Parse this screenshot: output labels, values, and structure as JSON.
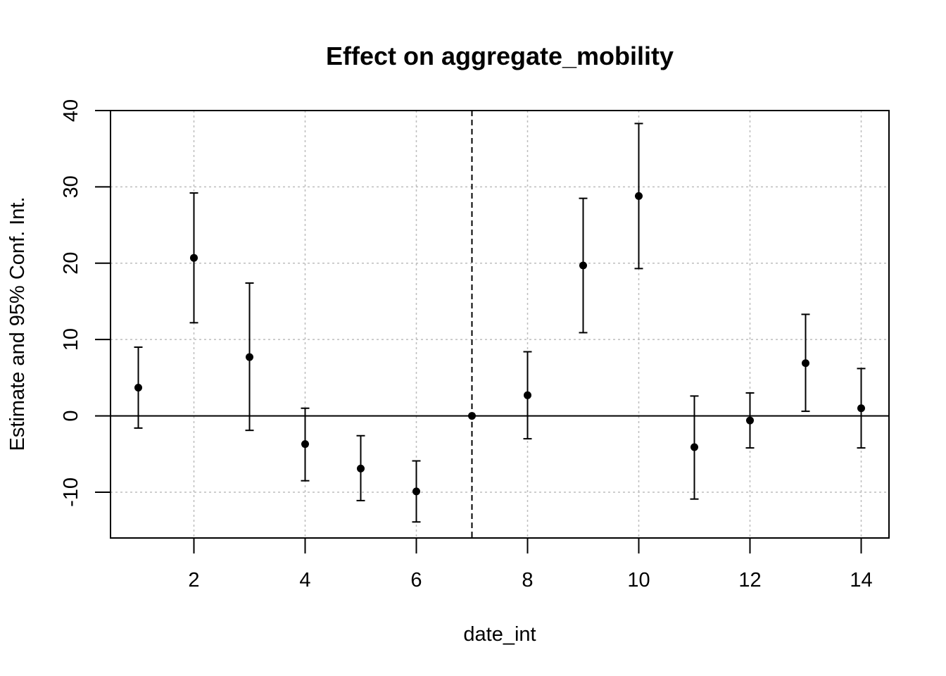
{
  "chart_data": {
    "type": "scatter",
    "title": "Effect on aggregate_mobility",
    "xlabel": "date_int",
    "ylabel": "Estimate and 95% Conf. Int.",
    "xlim": [
      0.5,
      14.5
    ],
    "ylim": [
      -16,
      40
    ],
    "x_ticks": [
      2,
      4,
      6,
      8,
      10,
      12,
      14
    ],
    "y_ticks": [
      -10,
      0,
      10,
      20,
      30,
      40
    ],
    "x_tick_labels": [
      "2",
      "4",
      "6",
      "8",
      "10",
      "12",
      "14"
    ],
    "y_tick_labels": [
      "-10",
      "0",
      "10",
      "20",
      "30",
      "40"
    ],
    "grid": true,
    "reference_hline": 0,
    "reference_vline": 7,
    "points": [
      {
        "x": 1,
        "y": 3.7,
        "lo": -1.6,
        "hi": 9.0
      },
      {
        "x": 2,
        "y": 20.7,
        "lo": 12.2,
        "hi": 29.2
      },
      {
        "x": 3,
        "y": 7.7,
        "lo": -1.9,
        "hi": 17.4
      },
      {
        "x": 4,
        "y": -3.7,
        "lo": -8.5,
        "hi": 1.0
      },
      {
        "x": 5,
        "y": -6.9,
        "lo": -11.1,
        "hi": -2.6
      },
      {
        "x": 6,
        "y": -9.9,
        "lo": -13.9,
        "hi": -5.9
      },
      {
        "x": 7,
        "y": 0.0,
        "lo": 0.0,
        "hi": 0.0
      },
      {
        "x": 8,
        "y": 2.7,
        "lo": -3.0,
        "hi": 8.4
      },
      {
        "x": 9,
        "y": 19.7,
        "lo": 10.9,
        "hi": 28.5
      },
      {
        "x": 10,
        "y": 28.8,
        "lo": 19.3,
        "hi": 38.3
      },
      {
        "x": 11,
        "y": -4.1,
        "lo": -10.9,
        "hi": 2.6
      },
      {
        "x": 12,
        "y": -0.6,
        "lo": -4.2,
        "hi": 3.0
      },
      {
        "x": 13,
        "y": 6.9,
        "lo": 0.6,
        "hi": 13.3
      },
      {
        "x": 14,
        "y": 1.0,
        "lo": -4.2,
        "hi": 6.2
      }
    ]
  }
}
